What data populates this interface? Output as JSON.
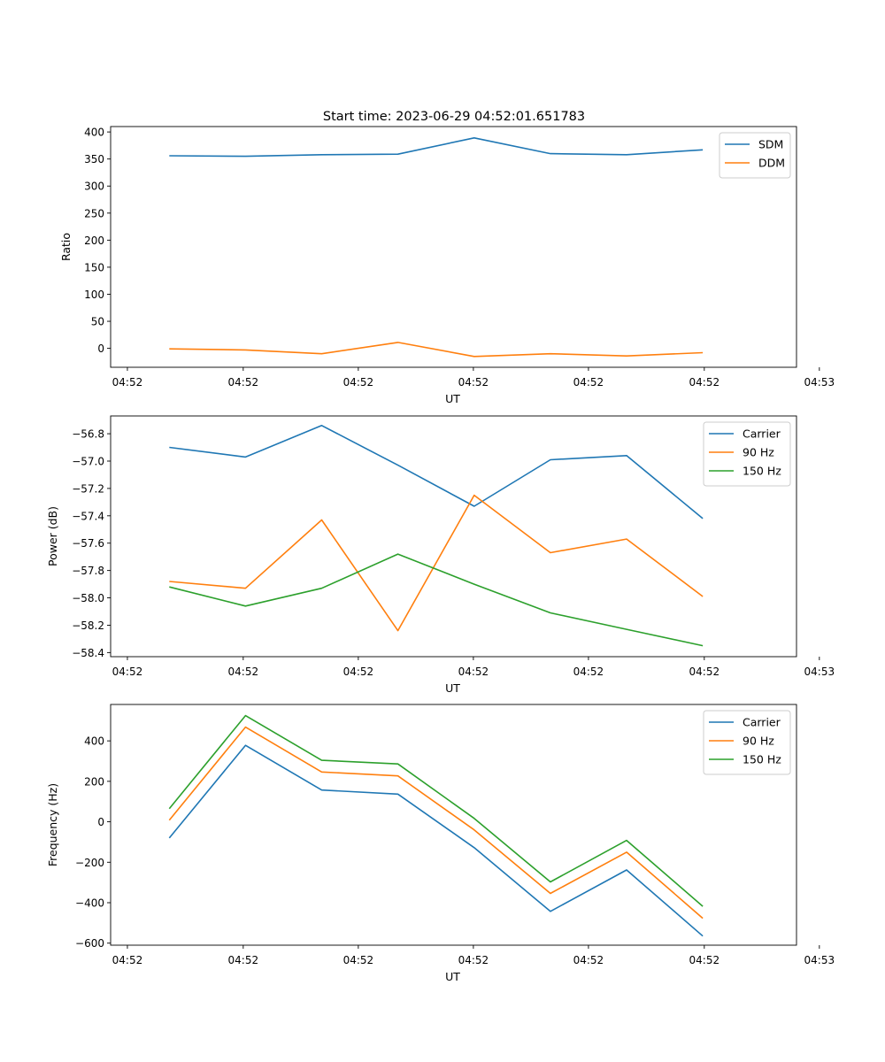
{
  "figure": {
    "title": "Start time: 2023-06-29 04:52:01.651783"
  },
  "chart_data": [
    {
      "type": "line",
      "title": "Start time: 2023-06-29 04:52:01.651783",
      "xlabel": "UT",
      "ylabel": "Ratio",
      "x": [
        1,
        2,
        3,
        4,
        5,
        6,
        7,
        8
      ],
      "xlim": [
        0.23,
        9.23
      ],
      "ylim": [
        -35,
        410
      ],
      "yticks": [
        0,
        50,
        100,
        150,
        200,
        250,
        300,
        350,
        400
      ],
      "ytick_labels": [
        "0",
        "50",
        "100",
        "150",
        "200",
        "250",
        "300",
        "350",
        "400"
      ],
      "xticks": [
        0.45,
        1.97,
        3.48,
        4.99,
        6.5,
        8.02,
        9.53
      ],
      "xtick_labels": [
        "04:52",
        "04:52",
        "04:52",
        "04:52",
        "04:52",
        "04:52",
        "04:53"
      ],
      "legend": "top-right",
      "grid": false,
      "series": [
        {
          "name": "SDM",
          "color": "#1f77b4",
          "values": [
            356,
            355,
            358,
            359,
            389,
            360,
            358,
            367
          ]
        },
        {
          "name": "DDM",
          "color": "#ff7f0e",
          "values": [
            -1,
            -3,
            -10,
            11,
            -15,
            -10,
            -14,
            -8
          ]
        }
      ]
    },
    {
      "type": "line",
      "xlabel": "UT",
      "ylabel": "Power (dB)",
      "x": [
        1,
        2,
        3,
        4,
        5,
        6,
        7,
        8
      ],
      "xlim": [
        0.23,
        9.23
      ],
      "ylim": [
        -58.43,
        -56.67
      ],
      "yticks": [
        -58.4,
        -58.2,
        -58.0,
        -57.8,
        -57.6,
        -57.4,
        -57.2,
        -57.0,
        -56.8
      ],
      "ytick_labels": [
        "−58.4",
        "−58.2",
        "−58.0",
        "−57.8",
        "−57.6",
        "−57.4",
        "−57.2",
        "−57.0",
        "−56.8"
      ],
      "xticks": [
        0.45,
        1.97,
        3.48,
        4.99,
        6.5,
        8.02,
        9.53
      ],
      "xtick_labels": [
        "04:52",
        "04:52",
        "04:52",
        "04:52",
        "04:52",
        "04:52",
        "04:53"
      ],
      "legend": "top-right",
      "grid": false,
      "series": [
        {
          "name": "Carrier",
          "color": "#1f77b4",
          "values": [
            -56.9,
            -56.97,
            -56.74,
            -57.03,
            -57.33,
            -56.99,
            -56.96,
            -57.42
          ]
        },
        {
          "name": "90 Hz",
          "color": "#ff7f0e",
          "values": [
            -57.88,
            -57.93,
            -57.43,
            -58.24,
            -57.25,
            -57.67,
            -57.57,
            -57.99
          ]
        },
        {
          "name": "150 Hz",
          "color": "#2ca02c",
          "values": [
            -57.92,
            -58.06,
            -57.93,
            -57.68,
            -57.9,
            -58.11,
            -58.23,
            -58.35
          ]
        }
      ]
    },
    {
      "type": "line",
      "xlabel": "UT",
      "ylabel": "Frequency (Hz)",
      "x": [
        1,
        2,
        3,
        4,
        5,
        6,
        7,
        8
      ],
      "xlim": [
        0.23,
        9.23
      ],
      "ylim": [
        -610,
        580
      ],
      "yticks": [
        -600,
        -400,
        -200,
        0,
        200,
        400
      ],
      "ytick_labels": [
        "−600",
        "−400",
        "−200",
        "0",
        "200",
        "400"
      ],
      "xticks": [
        0.45,
        1.97,
        3.48,
        4.99,
        6.5,
        8.02,
        9.53
      ],
      "xtick_labels": [
        "04:52",
        "04:52",
        "04:52",
        "04:52",
        "04:52",
        "04:52",
        "04:53"
      ],
      "legend": "top-right",
      "grid": false,
      "series": [
        {
          "name": "Carrier",
          "color": "#1f77b4",
          "values": [
            -80,
            378,
            157,
            137,
            -128,
            -443,
            -238,
            -565
          ]
        },
        {
          "name": "90 Hz",
          "color": "#ff7f0e",
          "values": [
            8,
            468,
            246,
            227,
            -40,
            -354,
            -150,
            -477
          ]
        },
        {
          "name": "150 Hz",
          "color": "#2ca02c",
          "values": [
            65,
            525,
            304,
            286,
            17,
            -297,
            -92,
            -418
          ]
        }
      ]
    }
  ]
}
